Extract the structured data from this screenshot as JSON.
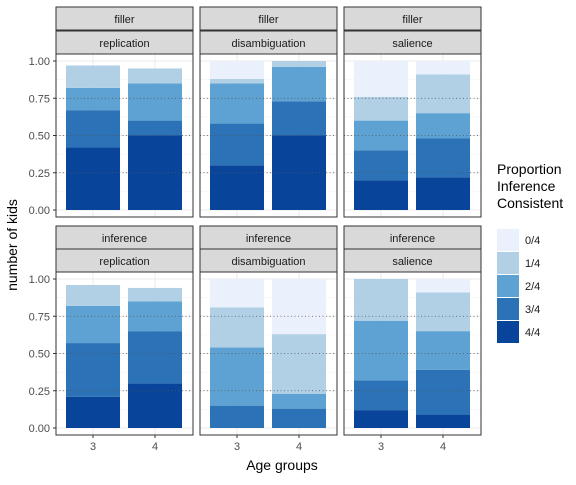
{
  "chart_data": {
    "type": "bar",
    "stacked": true,
    "facet_rows": [
      {
        "label": "filler",
        "panels": [
          {
            "label": "replication",
            "categories": [
              "3",
              "4"
            ],
            "stacks": [
              [
                0.42,
                0.25,
                0.15,
                0.15,
                0.0
              ],
              [
                0.5,
                0.1,
                0.25,
                0.1,
                0.0
              ]
            ]
          },
          {
            "label": "disambiguation",
            "categories": [
              "3",
              "4"
            ],
            "stacks": [
              [
                0.3,
                0.28,
                0.27,
                0.03,
                0.12
              ],
              [
                0.5,
                0.23,
                0.23,
                0.04,
                0.0
              ]
            ]
          },
          {
            "label": "salience",
            "categories": [
              "3",
              "4"
            ],
            "stacks": [
              [
                0.2,
                0.2,
                0.2,
                0.16,
                0.24
              ],
              [
                0.22,
                0.26,
                0.17,
                0.26,
                0.09
              ]
            ]
          }
        ]
      },
      {
        "label": "inference",
        "panels": [
          {
            "label": "replication",
            "categories": [
              "3",
              "4"
            ],
            "stacks": [
              [
                0.21,
                0.36,
                0.25,
                0.14,
                0.0
              ],
              [
                0.3,
                0.35,
                0.2,
                0.09,
                0.0
              ]
            ]
          },
          {
            "label": "disambiguation",
            "categories": [
              "3",
              "4"
            ],
            "stacks": [
              [
                0.0,
                0.15,
                0.39,
                0.27,
                0.19
              ],
              [
                0.0,
                0.13,
                0.1,
                0.4,
                0.37
              ]
            ]
          },
          {
            "label": "salience",
            "categories": [
              "3",
              "4"
            ],
            "stacks": [
              [
                0.12,
                0.2,
                0.4,
                0.28,
                0.0
              ],
              [
                0.09,
                0.3,
                0.26,
                0.26,
                0.09
              ]
            ]
          }
        ]
      }
    ],
    "series": [
      {
        "name": "4/4",
        "color": "#08459A"
      },
      {
        "name": "3/4",
        "color": "#2B73B6"
      },
      {
        "name": "2/4",
        "color": "#5DA2D2"
      },
      {
        "name": "1/4",
        "color": "#B1D0E6"
      },
      {
        "name": "0/4",
        "color": "#EAF1FD"
      }
    ],
    "legend_order": [
      "0/4",
      "1/4",
      "2/4",
      "3/4",
      "4/4"
    ],
    "legend_title": [
      "Proportion",
      "Inference",
      "Consistent"
    ],
    "legend_position": "right",
    "xlabel": "Age groups",
    "ylabel": "number of kids",
    "ylim": [
      0,
      1
    ],
    "yticks": [
      "0.00",
      "0.25",
      "0.50",
      "0.75",
      "1.00"
    ],
    "grid": true
  }
}
